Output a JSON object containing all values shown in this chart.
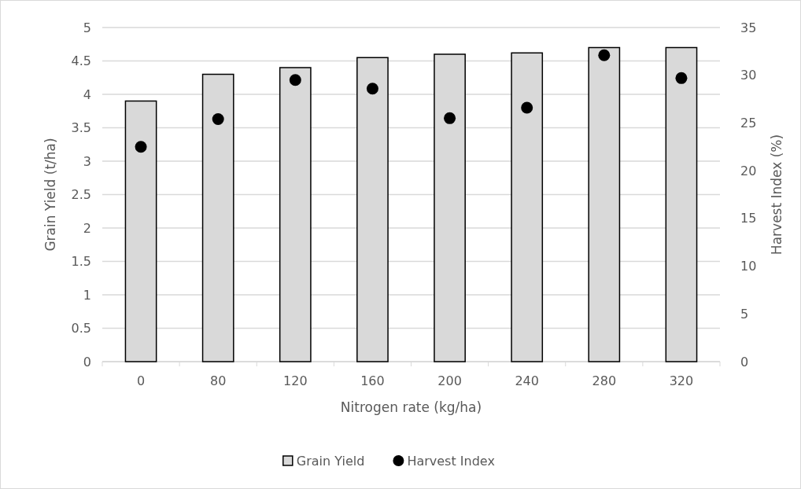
{
  "chart_data": {
    "type": "bar",
    "xlabel": "Nitrogen rate (kg/ha)",
    "ylabel": "Grain Yield (t/ha)",
    "y2label": "Harvest Index (%)",
    "categories": [
      "0",
      "80",
      "120",
      "160",
      "200",
      "240",
      "280",
      "320"
    ],
    "series": [
      {
        "name": "Grain Yield",
        "color": "#d9d9d9",
        "values": [
          3.9,
          4.3,
          4.4,
          4.55,
          4.6,
          4.62,
          4.7,
          4.7
        ]
      },
      {
        "name": "Harvest Index",
        "type": "scatter",
        "axis": "y2",
        "color": "#000000",
        "marker": "circle",
        "values": [
          22.5,
          25.4,
          29.5,
          28.6,
          25.5,
          26.6,
          32.1,
          29.7
        ]
      }
    ],
    "ylim": [
      0,
      5
    ],
    "yticks": [
      0,
      0.5,
      1,
      1.5,
      2,
      2.5,
      3,
      3.5,
      4,
      4.5,
      5
    ],
    "y2lim": [
      0,
      35
    ],
    "y2ticks": [
      0,
      5,
      10,
      15,
      20,
      25,
      30,
      35
    ],
    "grid": "y",
    "legend": "bottom"
  }
}
